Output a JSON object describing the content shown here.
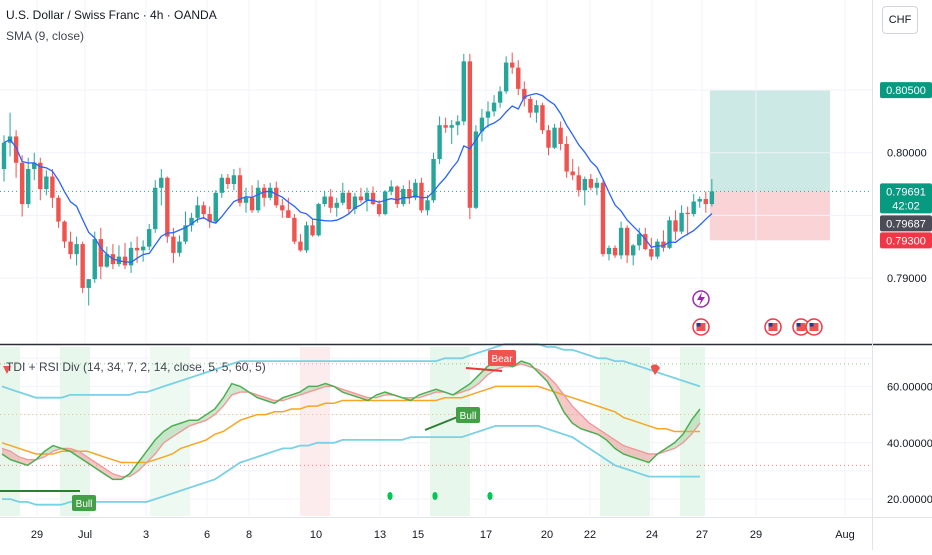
{
  "header": {
    "title": "U.S. Dollar / Swiss Franc · 4h · OANDA",
    "sma_label": "SMA (9, close)",
    "currency": "CHF"
  },
  "indicator": {
    "label": "TDI + RSI Div (14, 34, 7, 2, 14, close, 5, 5, 60, 5)",
    "bear_label": "Bear",
    "bull_labels": [
      "Bull",
      "Bull"
    ]
  },
  "chart_data": [
    {
      "type": "candlestick",
      "title": "U.S. Dollar / Swiss Franc · 4h · OANDA",
      "xlabel": "",
      "ylabel": "",
      "x_tick_labels": [
        "29",
        "Jul",
        "3",
        "6",
        "8",
        "10",
        "13",
        "15",
        "17",
        "20",
        "22",
        "24",
        "27",
        "29",
        "Aug"
      ],
      "y_tick_labels": [
        "0.79000",
        "0.80000"
      ],
      "ylim": [
        0.7848,
        0.8122
      ],
      "price_labels": {
        "target": "0.80500",
        "last": "0.79691",
        "countdown": "42:02",
        "sma": "0.79687",
        "stop": "0.79300"
      },
      "sma_period": 9,
      "candles": [
        [
          0.7987,
          0.8014,
          0.7977,
          0.8008
        ],
        [
          0.8008,
          0.8032,
          0.7997,
          0.8013
        ],
        [
          0.8013,
          0.8018,
          0.798,
          0.7992
        ],
        [
          0.7992,
          0.7998,
          0.7949,
          0.7959
        ],
        [
          0.7959,
          0.7996,
          0.7956,
          0.7987
        ],
        [
          0.7987,
          0.8,
          0.7978,
          0.7992
        ],
        [
          0.7992,
          0.7996,
          0.7962,
          0.7971
        ],
        [
          0.7971,
          0.7986,
          0.7966,
          0.7981
        ],
        [
          0.7981,
          0.7987,
          0.7956,
          0.7964
        ],
        [
          0.7964,
          0.7966,
          0.794,
          0.7945
        ],
        [
          0.7945,
          0.7946,
          0.7924,
          0.7929
        ],
        [
          0.7929,
          0.7937,
          0.7915,
          0.7919
        ],
        [
          0.7919,
          0.7933,
          0.791,
          0.7927
        ],
        [
          0.7927,
          0.7929,
          0.7888,
          0.7892
        ],
        [
          0.7892,
          0.7899,
          0.7878,
          0.7899
        ],
        [
          0.7899,
          0.7937,
          0.7896,
          0.7931
        ],
        [
          0.7931,
          0.794,
          0.7899,
          0.7909
        ],
        [
          0.7909,
          0.7925,
          0.7908,
          0.7919
        ],
        [
          0.7919,
          0.7927,
          0.7907,
          0.7911
        ],
        [
          0.7911,
          0.7926,
          0.7909,
          0.7917
        ],
        [
          0.7917,
          0.7928,
          0.7907,
          0.791
        ],
        [
          0.791,
          0.7929,
          0.7904,
          0.7924
        ],
        [
          0.7924,
          0.7933,
          0.7912,
          0.7922
        ],
        [
          0.7922,
          0.793,
          0.7913,
          0.7925
        ],
        [
          0.7925,
          0.7943,
          0.7922,
          0.7939
        ],
        [
          0.7939,
          0.7978,
          0.7936,
          0.7972
        ],
        [
          0.7972,
          0.7987,
          0.7958,
          0.798
        ],
        [
          0.798,
          0.7981,
          0.7928,
          0.7933
        ],
        [
          0.7933,
          0.794,
          0.7912,
          0.792
        ],
        [
          0.792,
          0.7934,
          0.7917,
          0.7929
        ],
        [
          0.7929,
          0.7953,
          0.7927,
          0.7942
        ],
        [
          0.7942,
          0.7952,
          0.7937,
          0.7948
        ],
        [
          0.7948,
          0.7965,
          0.7944,
          0.7958
        ],
        [
          0.7958,
          0.7961,
          0.7947,
          0.7951
        ],
        [
          0.7951,
          0.7957,
          0.794,
          0.7945
        ],
        [
          0.7945,
          0.797,
          0.7944,
          0.7968
        ],
        [
          0.7968,
          0.7983,
          0.7964,
          0.798
        ],
        [
          0.798,
          0.7983,
          0.7971,
          0.7975
        ],
        [
          0.7975,
          0.7987,
          0.797,
          0.7982
        ],
        [
          0.7982,
          0.7988,
          0.7957,
          0.796
        ],
        [
          0.796,
          0.7972,
          0.7952,
          0.7964
        ],
        [
          0.7964,
          0.7974,
          0.7952,
          0.7954
        ],
        [
          0.7954,
          0.7978,
          0.7952,
          0.7972
        ],
        [
          0.7972,
          0.7975,
          0.7957,
          0.7964
        ],
        [
          0.7964,
          0.7976,
          0.7962,
          0.7972
        ],
        [
          0.7972,
          0.7977,
          0.7956,
          0.7958
        ],
        [
          0.7958,
          0.7963,
          0.7948,
          0.7954
        ],
        [
          0.7954,
          0.7964,
          0.7948,
          0.7948
        ],
        [
          0.7948,
          0.7951,
          0.7927,
          0.7929
        ],
        [
          0.7929,
          0.7935,
          0.7921,
          0.7922
        ],
        [
          0.7922,
          0.7945,
          0.792,
          0.7942
        ],
        [
          0.7942,
          0.7947,
          0.7933,
          0.7934
        ],
        [
          0.7934,
          0.796,
          0.7933,
          0.7959
        ],
        [
          0.7959,
          0.7969,
          0.7957,
          0.7965
        ],
        [
          0.7965,
          0.7971,
          0.7952,
          0.7956
        ],
        [
          0.7956,
          0.7964,
          0.7949,
          0.796
        ],
        [
          0.796,
          0.7976,
          0.7958,
          0.7968
        ],
        [
          0.7968,
          0.797,
          0.7951,
          0.7955
        ],
        [
          0.7955,
          0.7968,
          0.7951,
          0.7965
        ],
        [
          0.7965,
          0.7972,
          0.796,
          0.7962
        ],
        [
          0.7962,
          0.7972,
          0.7953,
          0.7968
        ],
        [
          0.7968,
          0.7973,
          0.7958,
          0.7959
        ],
        [
          0.7959,
          0.7962,
          0.7949,
          0.7951
        ],
        [
          0.7951,
          0.797,
          0.795,
          0.7969
        ],
        [
          0.7969,
          0.7978,
          0.7966,
          0.7973
        ],
        [
          0.7973,
          0.7974,
          0.7956,
          0.7959
        ],
        [
          0.7959,
          0.7974,
          0.7957,
          0.7971
        ],
        [
          0.7971,
          0.7978,
          0.7959,
          0.7964
        ],
        [
          0.7964,
          0.7979,
          0.7962,
          0.7976
        ],
        [
          0.7976,
          0.798,
          0.7952,
          0.7954
        ],
        [
          0.7954,
          0.7966,
          0.795,
          0.7962
        ],
        [
          0.7962,
          0.8,
          0.796,
          0.7995
        ],
        [
          0.7995,
          0.8029,
          0.7991,
          0.8022
        ],
        [
          0.8022,
          0.8028,
          0.8016,
          0.802
        ],
        [
          0.802,
          0.8026,
          0.8007,
          0.8022
        ],
        [
          0.8022,
          0.803,
          0.8014,
          0.8025
        ],
        [
          0.8025,
          0.8079,
          0.8022,
          0.8073
        ],
        [
          0.8073,
          0.8079,
          0.7947,
          0.7956
        ],
        [
          0.7956,
          0.8022,
          0.7955,
          0.8017
        ],
        [
          0.8017,
          0.8035,
          0.8009,
          0.8028
        ],
        [
          0.8028,
          0.8041,
          0.802,
          0.8033
        ],
        [
          0.8033,
          0.8046,
          0.8029,
          0.804
        ],
        [
          0.804,
          0.8053,
          0.8036,
          0.8049
        ],
        [
          0.8049,
          0.8077,
          0.8047,
          0.8072
        ],
        [
          0.8072,
          0.808,
          0.8063,
          0.8068
        ],
        [
          0.8068,
          0.8074,
          0.8046,
          0.8051
        ],
        [
          0.8051,
          0.8057,
          0.8037,
          0.8043
        ],
        [
          0.8043,
          0.8045,
          0.8028,
          0.8032
        ],
        [
          0.8032,
          0.8042,
          0.8024,
          0.8038
        ],
        [
          0.8038,
          0.804,
          0.8015,
          0.8018
        ],
        [
          0.8018,
          0.8022,
          0.7998,
          0.8004
        ],
        [
          0.8004,
          0.8023,
          0.8003,
          0.802
        ],
        [
          0.802,
          0.8025,
          0.8002,
          0.8007
        ],
        [
          0.8007,
          0.8013,
          0.798,
          0.7985
        ],
        [
          0.7985,
          0.7995,
          0.7978,
          0.7982
        ],
        [
          0.7982,
          0.7989,
          0.7965,
          0.797
        ],
        [
          0.797,
          0.7981,
          0.7958,
          0.7979
        ],
        [
          0.7979,
          0.7983,
          0.797,
          0.7972
        ],
        [
          0.7972,
          0.798,
          0.7966,
          0.7976
        ],
        [
          0.7976,
          0.7978,
          0.7917,
          0.7919
        ],
        [
          0.7919,
          0.7926,
          0.7914,
          0.7924
        ],
        [
          0.7924,
          0.7926,
          0.7916,
          0.7918
        ],
        [
          0.7918,
          0.7945,
          0.7915,
          0.794
        ],
        [
          0.794,
          0.7942,
          0.7912,
          0.7918
        ],
        [
          0.7918,
          0.7927,
          0.791,
          0.7926
        ],
        [
          0.7926,
          0.794,
          0.7922,
          0.7935
        ],
        [
          0.7935,
          0.794,
          0.7922,
          0.7923
        ],
        [
          0.7923,
          0.7932,
          0.7914,
          0.7917
        ],
        [
          0.7917,
          0.7931,
          0.7915,
          0.7929
        ],
        [
          0.7929,
          0.7938,
          0.7921,
          0.7924
        ],
        [
          0.7924,
          0.7949,
          0.7923,
          0.7946
        ],
        [
          0.7946,
          0.7954,
          0.793,
          0.7937
        ],
        [
          0.7937,
          0.7958,
          0.7935,
          0.7952
        ],
        [
          0.7952,
          0.7957,
          0.7934,
          0.7951
        ],
        [
          0.7951,
          0.7967,
          0.7949,
          0.7961
        ],
        [
          0.7961,
          0.7965,
          0.7956,
          0.7963
        ],
        [
          0.7963,
          0.7969,
          0.7952,
          0.7959
        ],
        [
          0.7959,
          0.7979,
          0.7957,
          0.79691
        ]
      ],
      "position": {
        "entry": 0.79691,
        "target": 0.805,
        "stop": 0.793
      },
      "event_markers": [
        "lightning-event",
        "us-flag",
        "us-flag",
        "us-flag",
        "us-flag"
      ]
    },
    {
      "type": "line",
      "title": "TDI + RSI Div (14, 34, 7, 2, 14, close, 5, 5, 60, 5)",
      "xlabel": "",
      "ylabel": "",
      "y_tick_labels": [
        "20.00000",
        "40.00000",
        "60.00000"
      ],
      "ylim": [
        14,
        74
      ],
      "levels": [
        32,
        50,
        68
      ],
      "series": [
        {
          "values": [
            36,
            34,
            33,
            32,
            34,
            37,
            39,
            38,
            37,
            35,
            33,
            31,
            29,
            27,
            27,
            29,
            33,
            37,
            41,
            44,
            46,
            47,
            48,
            48,
            50,
            52,
            56,
            61,
            60,
            58,
            56,
            55,
            54,
            56,
            57,
            58,
            60,
            60,
            61,
            60,
            58,
            57,
            56,
            55,
            57,
            58,
            57,
            56,
            55,
            57,
            58,
            59,
            58,
            57,
            59,
            61,
            64,
            67,
            69,
            68,
            67,
            69,
            68,
            65,
            62,
            57,
            51,
            47,
            45,
            44,
            43,
            41,
            38,
            36,
            35,
            34,
            33,
            36,
            38,
            40,
            43,
            48,
            52
          ]
        },
        {
          "values": [
            38,
            37,
            35,
            34,
            34,
            35,
            37,
            38,
            38,
            37,
            35,
            33,
            31,
            29,
            28,
            28,
            30,
            33,
            36,
            40,
            42,
            44,
            46,
            47,
            48,
            50,
            53,
            57,
            58,
            58,
            57,
            56,
            55,
            55,
            56,
            57,
            58,
            59,
            60,
            60,
            59,
            58,
            57,
            56,
            56,
            57,
            57,
            56,
            56,
            56,
            57,
            58,
            58,
            57,
            58,
            59,
            61,
            64,
            66,
            67,
            67,
            68,
            67,
            66,
            64,
            61,
            57,
            53,
            50,
            47,
            45,
            43,
            41,
            39,
            38,
            37,
            36,
            36,
            37,
            38,
            40,
            43,
            47
          ]
        },
        {
          "values": [
            40,
            39,
            38,
            37,
            36,
            36,
            36,
            37,
            37,
            37,
            37,
            36,
            35,
            34,
            33,
            33,
            33,
            33,
            34,
            35,
            36,
            38,
            39,
            40,
            41,
            43,
            44,
            46,
            48,
            49,
            50,
            50,
            51,
            51,
            52,
            52,
            53,
            53,
            54,
            54,
            55,
            55,
            55,
            55,
            55,
            55,
            55,
            55,
            55,
            55,
            55,
            55,
            56,
            56,
            56,
            57,
            58,
            59,
            60,
            60,
            60,
            60,
            60,
            60,
            59,
            58,
            57,
            56,
            55,
            54,
            53,
            52,
            51,
            49,
            48,
            47,
            46,
            45,
            45,
            44,
            44,
            44,
            44
          ]
        },
        {
          "values": [
            60,
            59,
            58,
            57,
            56,
            56,
            56,
            56,
            57,
            57,
            57,
            57,
            57,
            57,
            57,
            57,
            58,
            58,
            59,
            60,
            61,
            62,
            63,
            64,
            65,
            66,
            67,
            68,
            69,
            69,
            69,
            69,
            69,
            69,
            69,
            69,
            69,
            69,
            69,
            69,
            69,
            69,
            69,
            69,
            69,
            69,
            69,
            69,
            69,
            69,
            69,
            69,
            70,
            70,
            70,
            71,
            72,
            73,
            74,
            75,
            75,
            75,
            75,
            75,
            74,
            74,
            73,
            73,
            72,
            71,
            70,
            70,
            69,
            69,
            68,
            67,
            66,
            65,
            64,
            63,
            62,
            61,
            60
          ]
        },
        {
          "values": [
            20,
            20,
            19,
            19,
            18,
            18,
            18,
            18,
            19,
            19,
            19,
            19,
            19,
            19,
            19,
            19,
            19,
            19,
            20,
            21,
            22,
            23,
            24,
            25,
            26,
            27,
            29,
            31,
            33,
            34,
            35,
            36,
            37,
            38,
            38,
            39,
            39,
            40,
            40,
            40,
            41,
            41,
            41,
            41,
            41,
            41,
            41,
            41,
            42,
            42,
            42,
            42,
            42,
            42,
            42,
            43,
            44,
            45,
            46,
            46,
            46,
            46,
            46,
            46,
            45,
            44,
            43,
            42,
            40,
            38,
            36,
            34,
            32,
            31,
            30,
            29,
            28,
            28,
            28,
            28,
            28,
            28,
            28
          ]
        }
      ],
      "signals": [
        "Bear",
        "Bull",
        "Bull"
      ]
    }
  ],
  "colors": {
    "up": "#26a69a",
    "down": "#ef5350",
    "sma": "#2962ff",
    "rsi": "#4caf50",
    "signal": "#ef9a9a",
    "baseline": "#f5a623",
    "band": "#7ad0e4",
    "target_zone": "#cde9e6",
    "stop_zone": "#f9d3d5",
    "target_tag": "#089981",
    "stop_tag": "#f23645",
    "sma_tag": "#4a4d57",
    "bear_tag": "#ef5350",
    "bull_tag": "#43a047"
  }
}
